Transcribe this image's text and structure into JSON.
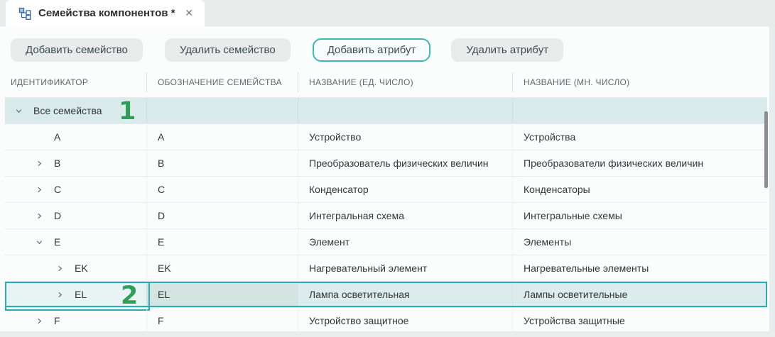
{
  "tab": {
    "title": "Семейства компонентов *",
    "icon": "hierarchy-icon",
    "close_glyph": "✕"
  },
  "toolbar": {
    "buttons": [
      {
        "label": "Добавить семейство",
        "active": false
      },
      {
        "label": "Удалить семейство",
        "active": false
      },
      {
        "label": "Добавить атрибут",
        "active": true
      },
      {
        "label": "Удалить атрибут",
        "active": false
      }
    ]
  },
  "table": {
    "columns": [
      "ИДЕНТИФИКАТОР",
      "ОБОЗНАЧЕНИЕ СЕМЕЙСТВА",
      "НАЗВАНИЕ (ЕД. ЧИСЛО)",
      "НАЗВАНИЕ (МН. ЧИСЛО)"
    ],
    "rows": [
      {
        "id": "Все семейства",
        "designation": "",
        "singular": "",
        "plural": "",
        "level": 0,
        "chevron": "expanded",
        "state": "group"
      },
      {
        "id": "A",
        "designation": "A",
        "singular": "Устройство",
        "plural": "Устройства",
        "level": 1,
        "chevron": "none",
        "state": "normal"
      },
      {
        "id": "B",
        "designation": "B",
        "singular": "Преобразователь физических величин",
        "plural": "Преобразователи физических величин",
        "level": 1,
        "chevron": "collapsed",
        "state": "normal"
      },
      {
        "id": "C",
        "designation": "C",
        "singular": "Конденсатор",
        "plural": "Конденсаторы",
        "level": 1,
        "chevron": "collapsed",
        "state": "normal"
      },
      {
        "id": "D",
        "designation": "D",
        "singular": "Интегральная схема",
        "plural": "Интегральные схемы",
        "level": 1,
        "chevron": "collapsed",
        "state": "normal"
      },
      {
        "id": "E",
        "designation": "E",
        "singular": "Элемент",
        "plural": "Элементы",
        "level": 1,
        "chevron": "expanded",
        "state": "normal"
      },
      {
        "id": "EK",
        "designation": "EK",
        "singular": "Нагревательный элемент",
        "plural": "Нагревательные элементы",
        "level": 2,
        "chevron": "collapsed",
        "state": "normal"
      },
      {
        "id": "EL",
        "designation": "EL",
        "singular": "Лампа осветительная",
        "plural": "Лампы осветительные",
        "level": 2,
        "chevron": "collapsed",
        "state": "selected"
      },
      {
        "id": "F",
        "designation": "F",
        "singular": "Устройство защитное",
        "plural": "Устройства защитные",
        "level": 1,
        "chevron": "collapsed",
        "state": "normal"
      }
    ]
  },
  "annotations": {
    "one": "1",
    "two": "2"
  },
  "colors": {
    "accent_teal": "#2aadad",
    "annotation_green": "#2f9e58",
    "group_row_bg": "#d9eaea",
    "selected_row_bg": "#dcecec",
    "tab_icon_blue": "#3a6ea5",
    "tabbar_bg": "#e8eceb"
  }
}
